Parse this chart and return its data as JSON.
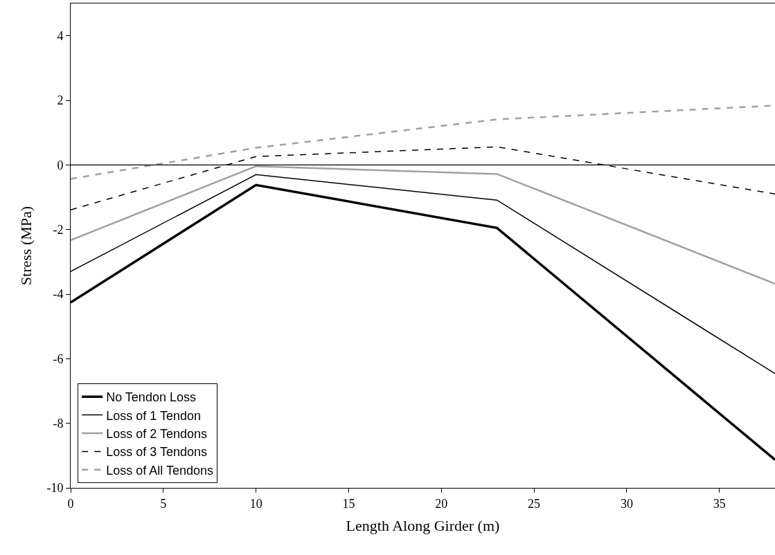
{
  "chart_data": {
    "type": "line",
    "xlabel": "Length Along Girder (m)",
    "ylabel": "Stress (MPa)",
    "x": [
      0,
      10,
      23,
      38
    ],
    "series": [
      {
        "name": "No Tendon Loss",
        "color": "#000000",
        "values": [
          -4.26,
          -0.62,
          -1.95,
          -9.13
        ],
        "line_style": "solid"
      },
      {
        "name": "Loss of 1 Tendon",
        "color": "#000000",
        "values": [
          -3.3,
          -0.3,
          -1.09,
          -6.46
        ],
        "line_style": "solid"
      },
      {
        "name": "Loss of 2 Tendons",
        "color": "#a0a0a0",
        "values": [
          -2.33,
          -0.04,
          -0.28,
          -3.68
        ],
        "line_style": "solid"
      },
      {
        "name": "Loss of 3 Tendons",
        "color": "#000000",
        "values": [
          -1.39,
          0.26,
          0.56,
          -0.9
        ],
        "line_style": "dashed"
      },
      {
        "name": "Loss of All Tendons",
        "color": "#a0a0a0",
        "values": [
          -0.43,
          0.53,
          1.41,
          1.84
        ],
        "line_style": "dashed"
      }
    ],
    "xlim": [
      0,
      38
    ],
    "ylim": [
      -10,
      5
    ],
    "xticks": [
      0,
      5,
      10,
      15,
      20,
      25,
      30,
      35
    ],
    "yticks": [
      -10,
      -8,
      -6,
      -4,
      -2,
      0,
      2,
      4
    ],
    "ref_lines": [
      {
        "axis": "y",
        "value": 0,
        "color": "#000000"
      }
    ],
    "legend": "bottom left",
    "marker": "none"
  }
}
